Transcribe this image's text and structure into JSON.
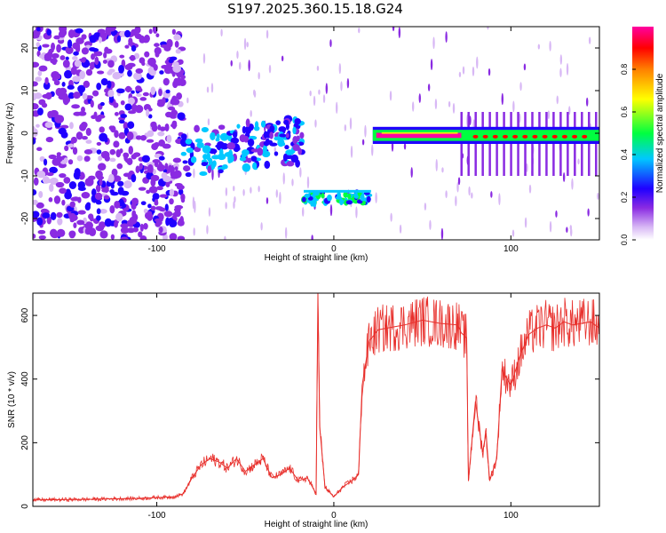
{
  "title": "S197.2025.360.15.18.G24",
  "colors": {
    "snr_line": "#e8302c",
    "colormap": [
      "#ffffff",
      "#e6c8f5",
      "#9a4ee6",
      "#5a00e0",
      "#0000ff",
      "#00d8ff",
      "#00ff40",
      "#ffff00",
      "#ff8000",
      "#ff0000",
      "#ff00a0"
    ]
  },
  "chart_data": [
    {
      "type": "heatmap",
      "title": "S197.2025.360.15.18.G24",
      "xlabel": "Height of straight line (km)",
      "ylabel": "Frequency (Hz)",
      "xlim": [
        -170,
        150
      ],
      "ylim": [
        -25,
        25
      ],
      "xticks": [
        -100,
        0,
        100
      ],
      "yticks": [
        -20,
        -10,
        0,
        10,
        20
      ],
      "colorbar": {
        "label": "Normalized spectral amplitude",
        "range": [
          0,
          1
        ],
        "ticks": [
          "0.0",
          "0.2",
          "0.4",
          "0.6",
          "0.8"
        ]
      },
      "features": [
        {
          "x_range": [
            -170,
            -85
          ],
          "freq_range": [
            -25,
            25
          ],
          "amplitude": 0.05
        },
        {
          "x_range": [
            -85,
            -18
          ],
          "freq_range": [
            -10,
            2
          ],
          "amplitude": 0.25
        },
        {
          "x_range": [
            -17,
            22
          ],
          "freq_center": -14,
          "amplitude": 0.45
        },
        {
          "x_range": [
            22,
            72
          ],
          "freq_center": -0.5,
          "amplitude": 1.0
        },
        {
          "x_range": [
            72,
            150
          ],
          "freq_center": -0.5,
          "amplitude": 0.75
        }
      ]
    },
    {
      "type": "line",
      "xlabel": "Height of straight line (km)",
      "ylabel": "SNR (10 * v/v)",
      "xlim": [
        -170,
        150
      ],
      "ylim": [
        0,
        670
      ],
      "xticks": [
        -100,
        0,
        100
      ],
      "yticks": [
        0,
        200,
        400,
        600
      ],
      "series": [
        {
          "x": [
            -170,
            -140,
            -110,
            -90,
            -85,
            -80,
            -75,
            -70,
            -65,
            -60,
            -55,
            -50,
            -45,
            -40,
            -35,
            -30,
            -25,
            -20,
            -15,
            -10,
            -9,
            -8,
            -5,
            0,
            5,
            10,
            14,
            16,
            20,
            23,
            25,
            30,
            40,
            50,
            60,
            70,
            72,
            75,
            76,
            80,
            84,
            86,
            88,
            92,
            95,
            100,
            105,
            110,
            115,
            120,
            125,
            130,
            135,
            140,
            145,
            150
          ],
          "y": [
            20,
            22,
            25,
            30,
            40,
            90,
            130,
            150,
            140,
            120,
            150,
            110,
            130,
            150,
            90,
            100,
            120,
            80,
            90,
            40,
            670,
            250,
            60,
            30,
            60,
            80,
            100,
            380,
            520,
            540,
            555,
            560,
            570,
            585,
            575,
            570,
            545,
            530,
            80,
            330,
            170,
            230,
            80,
            150,
            430,
            380,
            470,
            540,
            560,
            570,
            560,
            580,
            570,
            575,
            580,
            560
          ]
        }
      ]
    }
  ]
}
